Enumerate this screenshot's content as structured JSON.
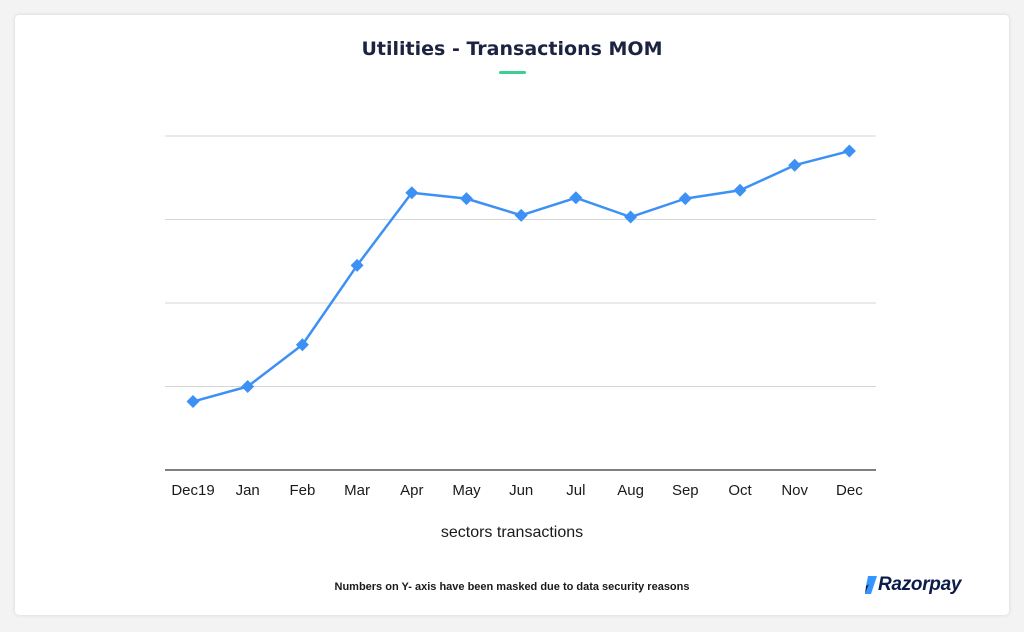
{
  "brand": {
    "logo_text": "Razorpay",
    "accent": "#3ccf8e"
  },
  "footnote": "Numbers on Y- axis have been masked due to data security reasons",
  "chart_data": {
    "type": "line",
    "title": "Utilities - Transactions MOM",
    "xlabel": "sectors transactions",
    "ylabel": "",
    "categories": [
      "Dec19",
      "Jan",
      "Feb",
      "Mar",
      "Apr",
      "May",
      "Jun",
      "Jul",
      "Aug",
      "Sep",
      "Oct",
      "Nov",
      "Dec"
    ],
    "series": [
      {
        "values": [
          0.82,
          1.0,
          1.5,
          2.45,
          3.32,
          3.25,
          3.05,
          3.26,
          3.03,
          3.25,
          3.35,
          3.65,
          3.82
        ],
        "color": "#3d91f5"
      }
    ],
    "ylim": [
      0,
      4
    ],
    "y_tick_labels_masked": true,
    "grid": true,
    "marker": "diamond"
  }
}
